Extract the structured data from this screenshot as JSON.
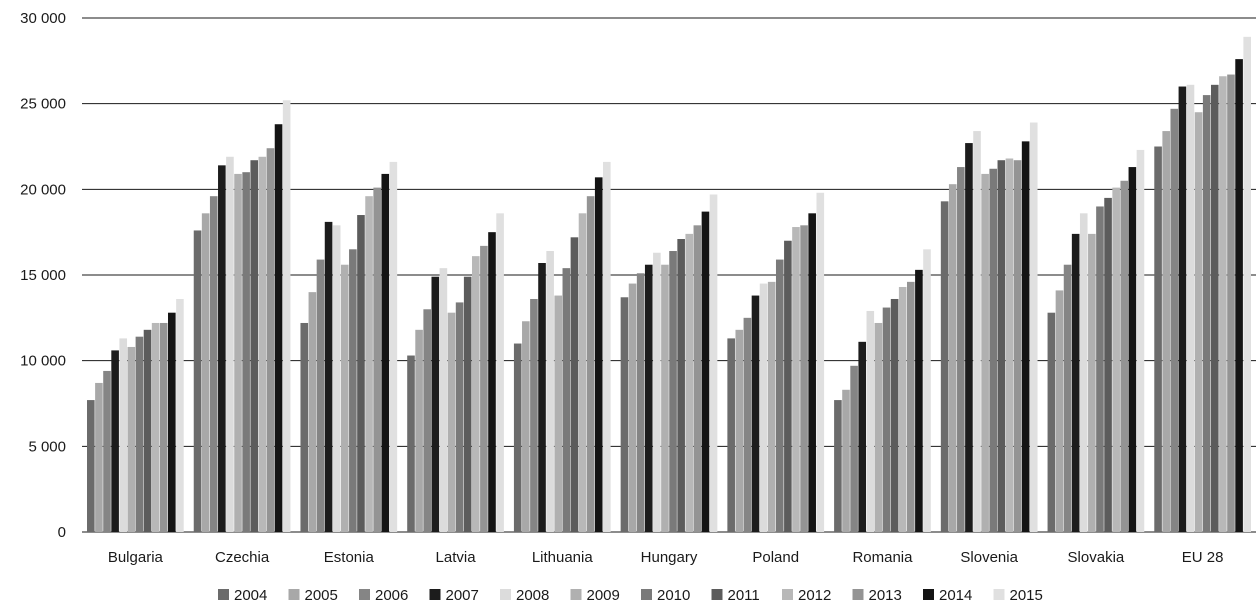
{
  "chart_data": {
    "type": "bar",
    "title": "",
    "xlabel": "",
    "ylabel": "",
    "ylim": [
      0,
      30000
    ],
    "yticks": [
      0,
      5000,
      10000,
      15000,
      20000,
      25000,
      30000
    ],
    "ytick_labels": [
      "0",
      "5 000",
      "10 000",
      "15 000",
      "20 000",
      "25 000",
      "30 000"
    ],
    "grid": true,
    "legend_position": "bottom",
    "categories": [
      "Bulgaria",
      "Czechia",
      "Estonia",
      "Latvia",
      "Lithuania",
      "Hungary",
      "Poland",
      "Romania",
      "Slovenia",
      "Slovakia",
      "EU 28"
    ],
    "series": [
      {
        "name": "2004",
        "color": "#6b6b6b",
        "values": [
          7700,
          17600,
          12200,
          10300,
          11000,
          13700,
          11300,
          7700,
          19300,
          12800,
          22500
        ]
      },
      {
        "name": "2005",
        "color": "#a8a8a8",
        "values": [
          8700,
          18600,
          14000,
          11800,
          12300,
          14500,
          11800,
          8300,
          20300,
          14100,
          23400
        ]
      },
      {
        "name": "2006",
        "color": "#858585",
        "values": [
          9400,
          19600,
          15900,
          13000,
          13600,
          15100,
          12500,
          9700,
          21300,
          15600,
          24700
        ]
      },
      {
        "name": "2007",
        "color": "#1c1c1c",
        "values": [
          10600,
          21400,
          18100,
          14900,
          15700,
          15600,
          13800,
          11100,
          22700,
          17400,
          26000
        ]
      },
      {
        "name": "2008",
        "color": "#dcdcdc",
        "values": [
          11300,
          21900,
          17900,
          15400,
          16400,
          16300,
          14500,
          12900,
          23400,
          18600,
          26100
        ]
      },
      {
        "name": "2009",
        "color": "#b0b0b0",
        "values": [
          10800,
          20900,
          15600,
          12800,
          13800,
          15600,
          14600,
          12200,
          20900,
          17400,
          24500
        ]
      },
      {
        "name": "2010",
        "color": "#7a7a7a",
        "values": [
          11400,
          21000,
          16500,
          13400,
          15400,
          16400,
          15900,
          13100,
          21200,
          19000,
          25500
        ]
      },
      {
        "name": "2011",
        "color": "#5c5c5c",
        "values": [
          11800,
          21700,
          18500,
          14900,
          17200,
          17100,
          17000,
          13600,
          21700,
          19500,
          26100
        ]
      },
      {
        "name": "2012",
        "color": "#b8b8b8",
        "values": [
          12200,
          21900,
          19600,
          16100,
          18600,
          17400,
          17800,
          14300,
          21800,
          20100,
          26600
        ]
      },
      {
        "name": "2013",
        "color": "#949494",
        "values": [
          12200,
          22400,
          20100,
          16700,
          19600,
          17900,
          17900,
          14600,
          21700,
          20500,
          26700
        ]
      },
      {
        "name": "2014",
        "color": "#141414",
        "values": [
          12800,
          23800,
          20900,
          17500,
          20700,
          18700,
          18600,
          15300,
          22800,
          21300,
          27600
        ]
      },
      {
        "name": "2015",
        "color": "#e0e0e0",
        "values": [
          13600,
          25200,
          21600,
          18600,
          21600,
          19700,
          19800,
          16500,
          23900,
          22300,
          28900
        ]
      }
    ]
  }
}
